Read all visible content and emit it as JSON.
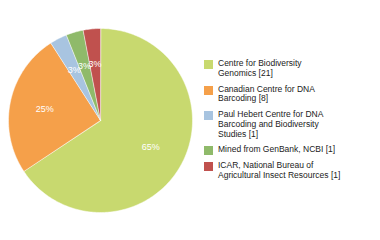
{
  "chart_data": {
    "type": "pie",
    "categories": [
      "Centre for Biodiversity\nGenomics [21]",
      "Canadian Centre for DNA\nBarcoding [8]",
      "Paul Hebert Centre for DNA\nBarcoding and Biodiversity\nStudies [1]",
      "Mined from GenBank, NCBI [1]",
      "ICAR, National Bureau of\nAgricultural Insect Resources [1]"
    ],
    "values": [
      65,
      25,
      3,
      3,
      3
    ],
    "value_labels": [
      "65%",
      "25%",
      "3%",
      "3%",
      "3%"
    ],
    "colors": [
      "#c8d96f",
      "#f5a04a",
      "#a8c4e0",
      "#8fba6a",
      "#c0514e"
    ],
    "data_labels": true,
    "legend": "right"
  }
}
